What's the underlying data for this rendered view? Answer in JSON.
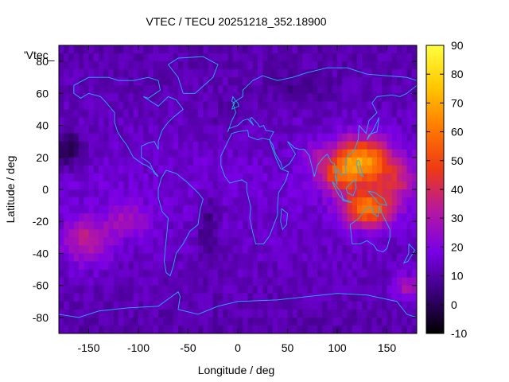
{
  "chart_data": {
    "type": "heatmap",
    "title": "VTEC / TECU 20251218_352.18900",
    "xlabel": "Longitude / deg",
    "ylabel": "Latitude / deg",
    "legend_label": "'Vtec_",
    "xlim": [
      -180,
      180
    ],
    "ylim": [
      -90,
      90
    ],
    "xticks": [
      -150,
      -100,
      -50,
      0,
      50,
      100,
      150
    ],
    "yticks": [
      -80,
      -60,
      -40,
      -20,
      0,
      20,
      40,
      60,
      80
    ],
    "colorbar": {
      "min": -10,
      "max": 90,
      "ticks": [
        -10,
        0,
        10,
        20,
        30,
        40,
        50,
        60,
        70,
        80,
        90
      ],
      "colormap": [
        "#000000",
        "#3a007a",
        "#7a00e6",
        "#b7189e",
        "#ee3a14",
        "#ff7a00",
        "#ffc800",
        "#ffff40"
      ]
    },
    "grid": false,
    "cell_deg": 5,
    "features": [
      {
        "lon": 125,
        "lat": 18,
        "sx": 28,
        "sy": 14,
        "amp": 52
      },
      {
        "lon": 130,
        "lat": -12,
        "sx": 24,
        "sy": 11,
        "amp": 46
      },
      {
        "lon": 102,
        "lat": 8,
        "sx": 20,
        "sy": 10,
        "amp": 26
      },
      {
        "lon": 160,
        "lat": 5,
        "sx": 22,
        "sy": 14,
        "amp": 18
      },
      {
        "lon": -152,
        "lat": -32,
        "sx": 24,
        "sy": 14,
        "amp": 20
      },
      {
        "lon": -110,
        "lat": -20,
        "sx": 20,
        "sy": 10,
        "amp": 14
      },
      {
        "lon": 170,
        "lat": -62,
        "sx": 14,
        "sy": 9,
        "amp": 16
      },
      {
        "lon": 80,
        "lat": 20,
        "sx": 16,
        "sy": 10,
        "amp": 10
      },
      {
        "lon": -170,
        "lat": 25,
        "sx": 14,
        "sy": 12,
        "amp": -14
      },
      {
        "lon": -30,
        "lat": -25,
        "sx": 10,
        "sy": 20,
        "amp": -10
      },
      {
        "lon": -5,
        "lat": 48,
        "sx": 18,
        "sy": 10,
        "amp": -5
      },
      {
        "lon": 60,
        "lat": 62,
        "sx": 30,
        "sy": 10,
        "amp": -6
      }
    ],
    "background_value": 16,
    "coastlines": [
      [
        [
          -165,
          65
        ],
        [
          -150,
          70
        ],
        [
          -130,
          70
        ],
        [
          -120,
          68
        ],
        [
          -105,
          68
        ],
        [
          -90,
          70
        ],
        [
          -80,
          68
        ],
        [
          -78,
          62
        ],
        [
          -90,
          57
        ],
        [
          -95,
          58
        ],
        [
          -80,
          52
        ],
        [
          -70,
          58
        ],
        [
          -62,
          56
        ],
        [
          -55,
          50
        ],
        [
          -65,
          45
        ],
        [
          -70,
          42
        ],
        [
          -76,
          37
        ],
        [
          -80,
          30
        ],
        [
          -80,
          25
        ],
        [
          -84,
          30
        ],
        [
          -90,
          29
        ],
        [
          -97,
          27
        ],
        [
          -97,
          20
        ],
        [
          -92,
          18
        ],
        [
          -88,
          16
        ],
        [
          -84,
          10
        ],
        [
          -80,
          8
        ],
        [
          -85,
          12
        ],
        [
          -92,
          15
        ],
        [
          -96,
          16
        ],
        [
          -105,
          20
        ],
        [
          -112,
          28
        ],
        [
          -117,
          32
        ],
        [
          -121,
          36
        ],
        [
          -124,
          42
        ],
        [
          -124,
          48
        ],
        [
          -132,
          54
        ],
        [
          -138,
          58
        ],
        [
          -150,
          60
        ],
        [
          -158,
          57
        ],
        [
          -165,
          60
        ],
        [
          -165,
          65
        ]
      ],
      [
        [
          -72,
          12
        ],
        [
          -62,
          10
        ],
        [
          -52,
          5
        ],
        [
          -40,
          -2
        ],
        [
          -35,
          -6
        ],
        [
          -38,
          -13
        ],
        [
          -40,
          -22
        ],
        [
          -48,
          -26
        ],
        [
          -55,
          -34
        ],
        [
          -62,
          -40
        ],
        [
          -65,
          -48
        ],
        [
          -68,
          -54
        ],
        [
          -72,
          -52
        ],
        [
          -74,
          -45
        ],
        [
          -73,
          -37
        ],
        [
          -71,
          -25
        ],
        [
          -70,
          -18
        ],
        [
          -76,
          -14
        ],
        [
          -80,
          -5
        ],
        [
          -80,
          0
        ],
        [
          -77,
          7
        ],
        [
          -72,
          12
        ]
      ],
      [
        [
          -55,
          60
        ],
        [
          -43,
          60
        ],
        [
          -25,
          70
        ],
        [
          -20,
          78
        ],
        [
          -35,
          83
        ],
        [
          -60,
          82
        ],
        [
          -70,
          78
        ],
        [
          -60,
          70
        ],
        [
          -55,
          60
        ]
      ],
      [
        [
          -10,
          36
        ],
        [
          -6,
          43
        ],
        [
          -2,
          48
        ],
        [
          -5,
          54
        ],
        [
          5,
          58
        ],
        [
          5,
          62
        ],
        [
          15,
          68
        ],
        [
          25,
          71
        ],
        [
          40,
          68
        ],
        [
          55,
          70
        ],
        [
          70,
          73
        ],
        [
          90,
          76
        ],
        [
          110,
          76
        ],
        [
          130,
          72
        ],
        [
          150,
          71
        ],
        [
          170,
          70
        ],
        [
          180,
          68
        ]
      ],
      [
        [
          180,
          65
        ],
        [
          170,
          60
        ],
        [
          163,
          58
        ],
        [
          155,
          59
        ],
        [
          140,
          58
        ],
        [
          135,
          54
        ],
        [
          140,
          48
        ],
        [
          132,
          43
        ],
        [
          129,
          35
        ],
        [
          122,
          40
        ],
        [
          121,
          31
        ],
        [
          117,
          24
        ],
        [
          110,
          21
        ],
        [
          108,
          15
        ],
        [
          109,
          10
        ],
        [
          104,
          9
        ],
        [
          100,
          13
        ],
        [
          98,
          8
        ],
        [
          100,
          3
        ],
        [
          97,
          16
        ],
        [
          94,
          17
        ],
        [
          90,
          22
        ],
        [
          86,
          20
        ],
        [
          80,
          15
        ],
        [
          77,
          8
        ],
        [
          73,
          18
        ],
        [
          72,
          21
        ],
        [
          67,
          25
        ],
        [
          62,
          25
        ],
        [
          57,
          26
        ],
        [
          52,
          29
        ],
        [
          50,
          30
        ],
        [
          56,
          24
        ],
        [
          58,
          22
        ],
        [
          52,
          16
        ],
        [
          45,
          13
        ],
        [
          43,
          17
        ],
        [
          38,
          22
        ],
        [
          35,
          28
        ],
        [
          32,
          31
        ],
        [
          36,
          36
        ],
        [
          28,
          37
        ],
        [
          26,
          40
        ],
        [
          22,
          39
        ],
        [
          20,
          41
        ],
        [
          14,
          45
        ],
        [
          12,
          44
        ],
        [
          16,
          40
        ],
        [
          10,
          44
        ],
        [
          5,
          43
        ],
        [
          0,
          40
        ],
        [
          -9,
          38
        ],
        [
          -10,
          36
        ]
      ],
      [
        [
          -17,
          15
        ],
        [
          -17,
          21
        ],
        [
          -10,
          30
        ],
        [
          -6,
          35
        ],
        [
          0,
          36
        ],
        [
          10,
          37
        ],
        [
          11,
          33
        ],
        [
          20,
          31
        ],
        [
          25,
          32
        ],
        [
          32,
          31
        ],
        [
          34,
          27
        ],
        [
          38,
          20
        ],
        [
          43,
          13
        ],
        [
          51,
          11
        ],
        [
          48,
          5
        ],
        [
          41,
          -2
        ],
        [
          40,
          -10
        ],
        [
          40,
          -16
        ],
        [
          35,
          -24
        ],
        [
          32,
          -29
        ],
        [
          26,
          -34
        ],
        [
          18,
          -34
        ],
        [
          15,
          -27
        ],
        [
          12,
          -18
        ],
        [
          13,
          -11
        ],
        [
          9,
          -1
        ],
        [
          9,
          4
        ],
        [
          4,
          6
        ],
        [
          -2,
          5
        ],
        [
          -8,
          4
        ],
        [
          -13,
          8
        ],
        [
          -17,
          15
        ]
      ],
      [
        [
          113,
          -22
        ],
        [
          115,
          -34
        ],
        [
          123,
          -34
        ],
        [
          130,
          -32
        ],
        [
          137,
          -35
        ],
        [
          140,
          -38
        ],
        [
          146,
          -39
        ],
        [
          150,
          -37
        ],
        [
          153,
          -30
        ],
        [
          153,
          -25
        ],
        [
          145,
          -15
        ],
        [
          142,
          -11
        ],
        [
          141,
          -17
        ],
        [
          136,
          -15
        ],
        [
          136,
          -12
        ],
        [
          131,
          -11
        ],
        [
          126,
          -14
        ],
        [
          122,
          -18
        ],
        [
          113,
          -22
        ]
      ],
      [
        [
          -180,
          -78
        ],
        [
          -160,
          -80
        ],
        [
          -140,
          -76
        ],
        [
          -110,
          -74
        ],
        [
          -80,
          -73
        ],
        [
          -60,
          -64
        ],
        [
          -58,
          -67
        ],
        [
          -60,
          -75
        ],
        [
          -40,
          -78
        ],
        [
          -20,
          -73
        ],
        [
          0,
          -70
        ],
        [
          40,
          -69
        ],
        [
          70,
          -67
        ],
        [
          100,
          -65
        ],
        [
          130,
          -66
        ],
        [
          160,
          -70
        ],
        [
          170,
          -78
        ],
        [
          180,
          -80
        ]
      ],
      [
        [
          130,
          31
        ],
        [
          132,
          34
        ],
        [
          135,
          35
        ],
        [
          140,
          36
        ],
        [
          141,
          40
        ],
        [
          142,
          45
        ],
        [
          140,
          42
        ],
        [
          136,
          37
        ],
        [
          132,
          33
        ],
        [
          130,
          31
        ]
      ],
      [
        [
          -6,
          50
        ],
        [
          -3,
          51
        ],
        [
          1,
          52
        ],
        [
          0,
          54
        ],
        [
          -3,
          56
        ],
        [
          -5,
          58
        ],
        [
          -6,
          55
        ],
        [
          -3,
          54
        ],
        [
          -5,
          52
        ],
        [
          -6,
          50
        ]
      ],
      [
        [
          95,
          5
        ],
        [
          98,
          3
        ],
        [
          104,
          -2
        ],
        [
          106,
          -6
        ],
        [
          102,
          -4
        ],
        [
          97,
          2
        ],
        [
          95,
          5
        ]
      ],
      [
        [
          105,
          -6
        ],
        [
          115,
          -8
        ],
        [
          112,
          -8
        ],
        [
          106,
          -7
        ],
        [
          105,
          -6
        ]
      ],
      [
        [
          109,
          1
        ],
        [
          114,
          4
        ],
        [
          118,
          6
        ],
        [
          119,
          1
        ],
        [
          116,
          -4
        ],
        [
          110,
          -2
        ],
        [
          109,
          1
        ]
      ],
      [
        [
          131,
          -1
        ],
        [
          138,
          -2
        ],
        [
          147,
          -6
        ],
        [
          150,
          -10
        ],
        [
          142,
          -9
        ],
        [
          137,
          -5
        ],
        [
          131,
          -1
        ]
      ],
      [
        [
          120,
          18
        ],
        [
          122,
          18
        ],
        [
          124,
          13
        ],
        [
          126,
          8
        ],
        [
          122,
          10
        ],
        [
          120,
          14
        ],
        [
          120,
          18
        ]
      ],
      [
        [
          44,
          -12
        ],
        [
          50,
          -15
        ],
        [
          49,
          -22
        ],
        [
          45,
          -25
        ],
        [
          43,
          -20
        ],
        [
          44,
          -12
        ]
      ],
      [
        [
          172,
          -34
        ],
        [
          178,
          -38
        ],
        [
          175,
          -41
        ],
        [
          171,
          -45
        ],
        [
          167,
          -46
        ],
        [
          172,
          -40
        ],
        [
          172,
          -34
        ]
      ]
    ]
  }
}
